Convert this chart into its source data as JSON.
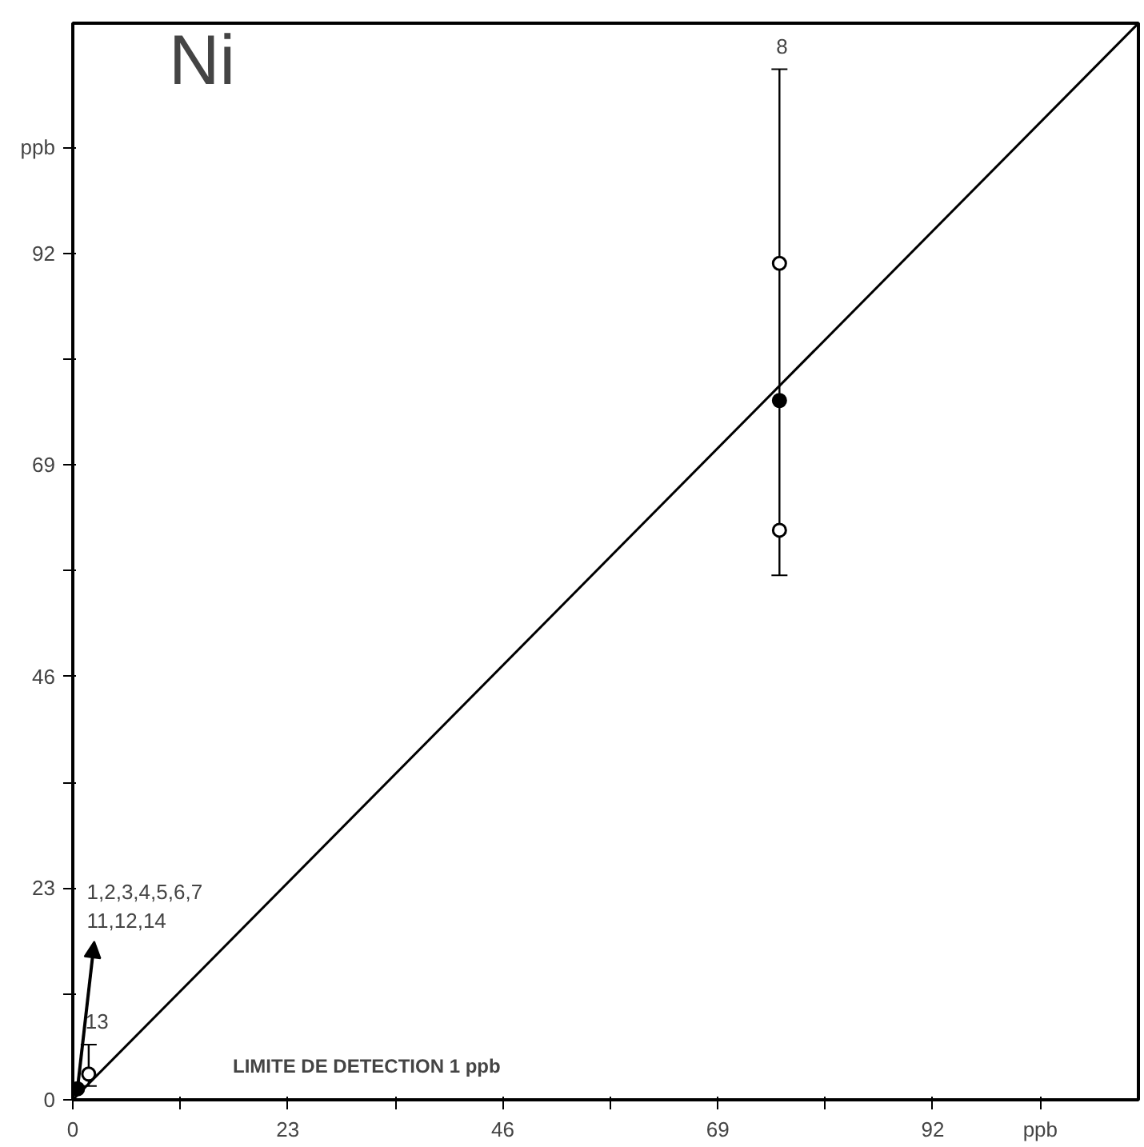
{
  "chart_data": {
    "type": "scatter",
    "xlim": [
      0,
      114
    ],
    "ylim": [
      0,
      117
    ],
    "xticks": [
      0,
      {
        "value": 11.5,
        "label": null
      },
      23,
      {
        "value": 34.5,
        "label": null
      },
      46,
      {
        "value": 57.5,
        "label": null
      },
      69,
      {
        "value": 80.5,
        "label": null
      },
      92,
      {
        "value": 103.5,
        "label": "ppb"
      }
    ],
    "yticks": [
      0,
      {
        "value": 11.5,
        "label": null
      },
      23,
      {
        "value": 34.5,
        "label": null
      },
      46,
      {
        "value": 57.5,
        "label": null
      },
      69,
      {
        "value": 80.5,
        "label": null
      },
      92,
      {
        "value": 103.5,
        "label": "ppb"
      }
    ],
    "marker": "circle",
    "series": [
      {
        "color": "#000000",
        "x": [
          0.5,
          75.6
        ],
        "values": [
          1.2,
          76
        ],
        "errors": [
          null,
          [
            57,
            112
          ]
        ]
      },
      {
        "color": "#000000",
        "x": [
          1.7,
          75.6,
          75.6
        ],
        "values": [
          2.8,
          90.9,
          61.9
        ],
        "errors": [
          [
            1.5,
            6
          ],
          null,
          null
        ]
      },
      {
        "type": "line",
        "marker": "none",
        "color": "#000000",
        "x": [
          0,
          114
        ],
        "values": [
          0,
          117
        ]
      }
    ],
    "annotations": [
      "Ni",
      "LIMITE DE DETECTION 1 ppb",
      {
        "text": "8",
        "x": 75.6,
        "y": 112
      },
      {
        "text": "13",
        "x": 1.7,
        "y": 6
      },
      {
        "text": "1,2,3,4,5,6,7\n11,12,14",
        "x": 0.5,
        "y": 1.2
      }
    ]
  }
}
